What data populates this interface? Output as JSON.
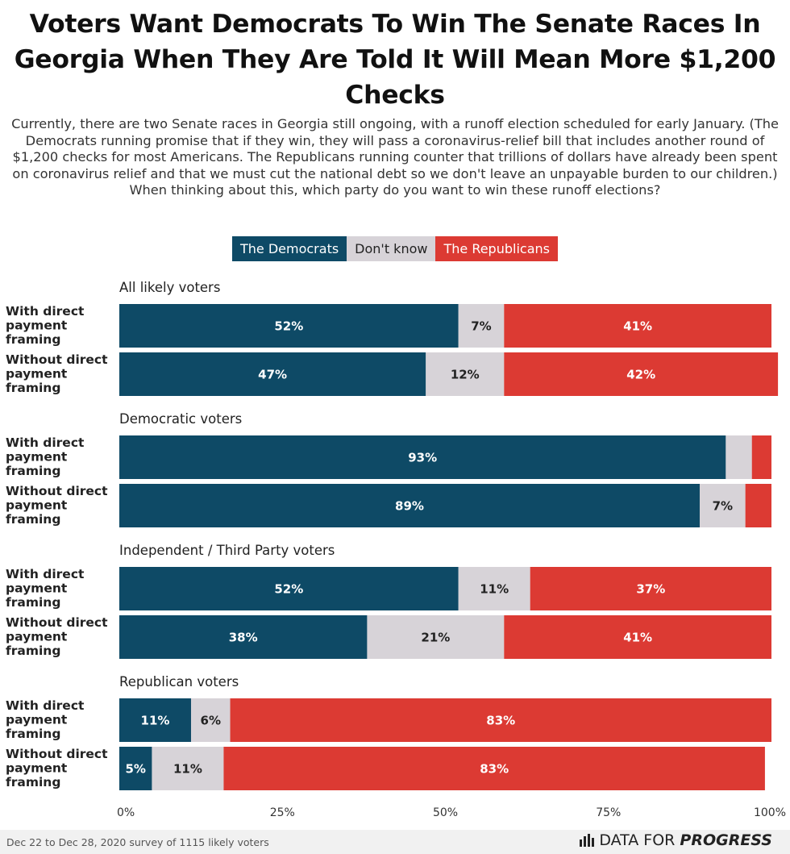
{
  "title": "Voters Want Democrats To Win The Senate Races In Georgia When They Are Told It Will Mean More $1,200 Checks",
  "subtitle": "Currently, there are two Senate races in Georgia still ongoing, with a runoff election scheduled for early January. (The Democrats running promise that if they win, they will pass a coronavirus-relief bill that includes another round of $1,200 checks for most Americans. The Republicans running counter that trillions of dollars have already been spent on coronavirus relief and that we must cut the national debt so we don't leave an unpayable burden to our children.) When thinking about this, which party do you want to win these runoff elections?",
  "legend": {
    "dem": "The Democrats",
    "dk": "Don't know",
    "rep": "The Republicans"
  },
  "colors": {
    "dem": "#0e4a66",
    "dk": "#d7d3d8",
    "rep": "#dc3a33"
  },
  "footer": {
    "source": "Dec 22 to Dec 28, 2020 survey of 1115 likely voters",
    "brand_1": "DATA FOR",
    "brand_2": "PROGRESS"
  },
  "chart_data": {
    "type": "bar",
    "orientation": "horizontal",
    "stacked": true,
    "xlim": [
      0,
      100
    ],
    "xticks": [
      "0%",
      "25%",
      "50%",
      "75%",
      "100%"
    ],
    "series_names": [
      "The Democrats",
      "Don't know",
      "The Republicans"
    ],
    "groups": [
      {
        "name": "All likely voters",
        "rows": [
          {
            "label": "With direct payment framing",
            "values": [
              52,
              7,
              41
            ],
            "labels": [
              "52%",
              "7%",
              "41%"
            ]
          },
          {
            "label": "Without direct payment framing",
            "values": [
              47,
              12,
              42
            ],
            "labels": [
              "47%",
              "12%",
              "42%"
            ]
          }
        ]
      },
      {
        "name": "Democratic voters",
        "rows": [
          {
            "label": "With direct payment framing",
            "values": [
              93,
              4,
              3
            ],
            "labels": [
              "93%",
              "",
              ""
            ]
          },
          {
            "label": "Without direct payment framing",
            "values": [
              89,
              7,
              4
            ],
            "labels": [
              "89%",
              "7%",
              ""
            ]
          }
        ]
      },
      {
        "name": "Independent / Third Party voters",
        "rows": [
          {
            "label": "With direct payment framing",
            "values": [
              52,
              11,
              37
            ],
            "labels": [
              "52%",
              "11%",
              "37%"
            ]
          },
          {
            "label": "Without direct payment framing",
            "values": [
              38,
              21,
              41
            ],
            "labels": [
              "38%",
              "21%",
              "41%"
            ]
          }
        ]
      },
      {
        "name": "Republican voters",
        "rows": [
          {
            "label": "With direct payment framing",
            "values": [
              11,
              6,
              83
            ],
            "labels": [
              "11%",
              "6%",
              "83%"
            ]
          },
          {
            "label": "Without direct payment framing",
            "values": [
              5,
              11,
              83
            ],
            "labels": [
              "5%",
              "11%",
              "83%"
            ]
          }
        ]
      }
    ]
  }
}
